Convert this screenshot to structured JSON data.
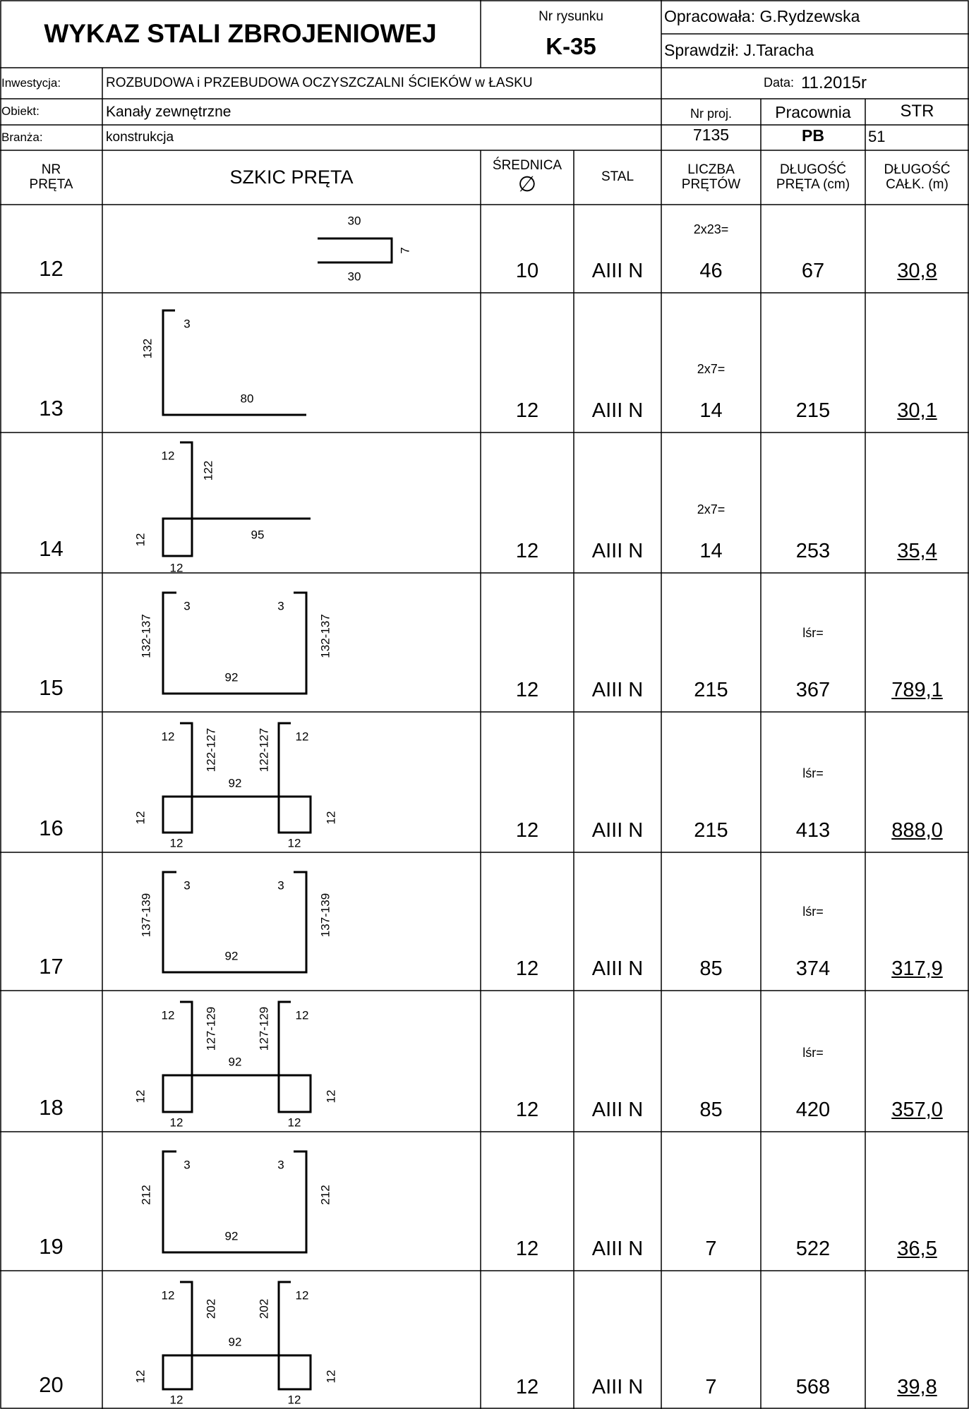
{
  "header": {
    "title": "WYKAZ STALI ZBROJENIOWEJ",
    "drawing_no_label": "Nr rysunku",
    "drawing_no": "K-35",
    "prepared_by": "Opracowała: G.Rydzewska",
    "checked_by": "Sprawdził: J.Taracha",
    "investment_label": "Inwestycja:",
    "investment": "ROZBUDOWA i PRZEBUDOWA OCZYSZCZALNI ŚCIEKÓW w ŁASKU",
    "date_label": "Data:",
    "date": "11.2015r",
    "object_label": "Obiekt:",
    "object": "Kanały zewnętrzne",
    "branch_label": "Branża:",
    "branch": "konstrukcja",
    "project_no_label": "Nr proj.",
    "project_no": "7135",
    "studio_label": "Pracownia",
    "studio": "PB",
    "page_label": "STR",
    "page": "51"
  },
  "columns": {
    "nr_line1": "NR",
    "nr_line2": "PRĘTA",
    "sketch": "SZKIC PRĘTA",
    "diameter_line1": "ŚREDNICA",
    "diameter_symbol": "∅",
    "steel": "STAL",
    "count_line1": "LICZBA",
    "count_line2": "PRĘTÓW",
    "length_line1": "DŁUGOŚĆ",
    "length_line2": "PRĘTA (cm)",
    "total_line1": "DŁUGOŚĆ",
    "total_line2": "CAŁK. (m)"
  },
  "rows": [
    {
      "nr": "12",
      "diameter": "10",
      "steel": "AIII N",
      "count_note": "2x23=",
      "count": "46",
      "length_note": "",
      "length": "67",
      "total": "30,8",
      "shape": "hook",
      "dims": [
        "30",
        "7",
        "30"
      ]
    },
    {
      "nr": "13",
      "diameter": "12",
      "steel": "AIII N",
      "count_note": "2x7=",
      "count": "14",
      "length_note": "",
      "length": "215",
      "total": "30,1",
      "shape": "L",
      "dims": [
        "3",
        "132",
        "80"
      ]
    },
    {
      "nr": "14",
      "diameter": "12",
      "steel": "AIII N",
      "count_note": "2x7=",
      "count": "14",
      "length_note": "",
      "length": "253",
      "total": "35,4",
      "shape": "H1",
      "dims": [
        "12",
        "122",
        "12",
        "95",
        "12"
      ]
    },
    {
      "nr": "15",
      "diameter": "12",
      "steel": "AIII N",
      "count_note": "",
      "count": "215",
      "length_note": "lśr=",
      "length": "367",
      "total": "789,1",
      "shape": "U",
      "dims": [
        "3",
        "3",
        "132-137",
        "132-137",
        "92"
      ]
    },
    {
      "nr": "16",
      "diameter": "12",
      "steel": "AIII N",
      "count_note": "",
      "count": "215",
      "length_note": "lśr=",
      "length": "413",
      "total": "888,0",
      "shape": "H2",
      "dims": [
        "12",
        "122-127",
        "122-127",
        "12",
        "12",
        "92",
        "12",
        "12",
        "12"
      ]
    },
    {
      "nr": "17",
      "diameter": "12",
      "steel": "AIII N",
      "count_note": "",
      "count": "85",
      "length_note": "lśr=",
      "length": "374",
      "total": "317,9",
      "shape": "U",
      "dims": [
        "3",
        "3",
        "137-139",
        "137-139",
        "92"
      ]
    },
    {
      "nr": "18",
      "diameter": "12",
      "steel": "AIII N",
      "count_note": "",
      "count": "85",
      "length_note": "lśr=",
      "length": "420",
      "total": "357,0",
      "shape": "H2",
      "dims": [
        "12",
        "127-129",
        "127-129",
        "12",
        "12",
        "92",
        "12",
        "12",
        "12"
      ]
    },
    {
      "nr": "19",
      "diameter": "12",
      "steel": "AIII N",
      "count_note": "",
      "count": "7",
      "length_note": "",
      "length": "522",
      "total": "36,5",
      "shape": "U",
      "dims": [
        "3",
        "3",
        "212",
        "212",
        "92"
      ]
    },
    {
      "nr": "20",
      "diameter": "12",
      "steel": "AIII N",
      "count_note": "",
      "count": "7",
      "length_note": "",
      "length": "568",
      "total": "39,8",
      "shape": "H2",
      "dims": [
        "12",
        "202",
        "202",
        "12",
        "12",
        "92",
        "12",
        "12",
        "12"
      ]
    }
  ]
}
